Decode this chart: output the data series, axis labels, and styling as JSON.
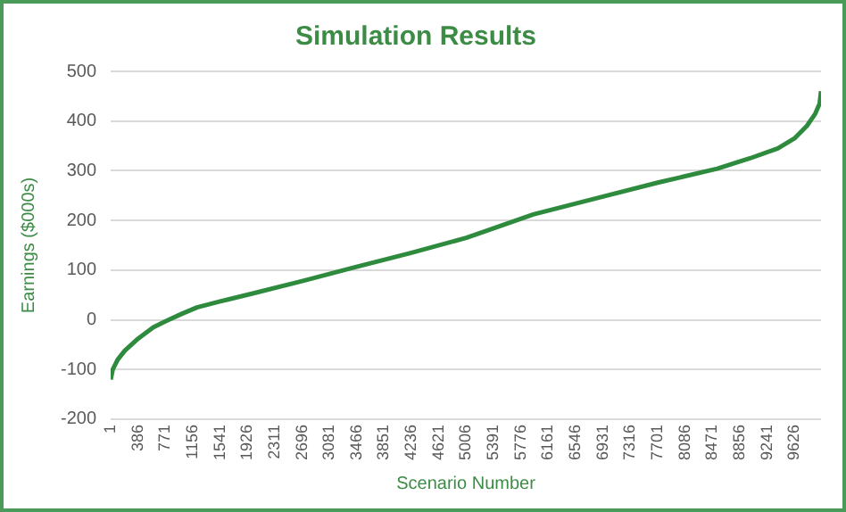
{
  "chart_data": {
    "type": "line",
    "title": "Simulation Results",
    "xlabel": "Scenario Number",
    "ylabel": "Earnings ($000s)",
    "x": [
      1,
      30,
      100,
      200,
      386,
      600,
      771,
      1000,
      1216,
      1541,
      2000,
      2696,
      3364,
      4236,
      5006,
      5950,
      6931,
      7701,
      8538,
      9000,
      9392,
      9626,
      9800,
      9920,
      9980,
      10000
    ],
    "series": [
      {
        "color": "#2e8b3e",
        "values": [
          -120,
          -100,
          -80,
          -62,
          -38,
          -15,
          -3,
          12,
          25,
          37,
          53,
          78,
          103,
          135,
          165,
          212,
          248,
          276,
          304,
          325,
          345,
          365,
          390,
          415,
          435,
          460
        ]
      }
    ],
    "xlim": [
      1,
      10000
    ],
    "xticks": [
      1,
      386,
      771,
      1156,
      1541,
      1926,
      2311,
      2696,
      3081,
      3466,
      3851,
      4236,
      4621,
      5006,
      5391,
      5776,
      6161,
      6546,
      6931,
      7316,
      7701,
      8086,
      8471,
      8856,
      9241,
      9626
    ],
    "ylim": [
      -200,
      500
    ],
    "yticks": [
      -200,
      -100,
      0,
      100,
      200,
      300,
      400,
      500
    ],
    "grid": "y",
    "marker": "none",
    "line_style": "solid",
    "legend": false
  }
}
